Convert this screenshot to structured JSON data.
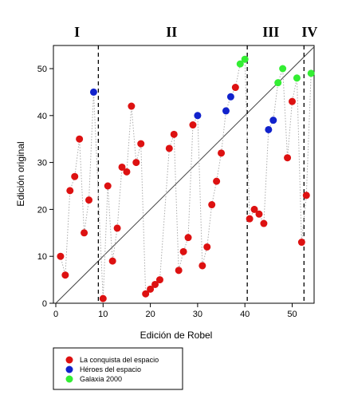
{
  "chart_data": {
    "type": "scatter",
    "xlabel": "Edición de Robel",
    "ylabel": "Edición original",
    "xlim": [
      0,
      55
    ],
    "ylim": [
      0,
      55
    ],
    "xticks": [
      0,
      10,
      20,
      30,
      40,
      50
    ],
    "yticks": [
      0,
      10,
      20,
      30,
      40,
      50
    ],
    "reference_line": "y = x",
    "period_boundaries": [
      9,
      40.5,
      52.5
    ],
    "periods": [
      {
        "label": "I",
        "x": 4.5
      },
      {
        "label": "II",
        "x": 24.5
      },
      {
        "label": "III",
        "x": 45.5
      },
      {
        "label": "IV",
        "x": 53.7
      }
    ],
    "series": [
      {
        "name": "La conquista del espacio",
        "color": "#dd1111"
      },
      {
        "name": "Héroes del espacio",
        "color": "#1122cc"
      },
      {
        "name": "Galaxia 2000",
        "color": "#33ee33"
      }
    ],
    "points": [
      {
        "x": 1,
        "y": 10,
        "s": 0
      },
      {
        "x": 2,
        "y": 6,
        "s": 0
      },
      {
        "x": 3,
        "y": 24,
        "s": 0
      },
      {
        "x": 4,
        "y": 27,
        "s": 0
      },
      {
        "x": 5,
        "y": 35,
        "s": 0
      },
      {
        "x": 6,
        "y": 15,
        "s": 0
      },
      {
        "x": 7,
        "y": 22,
        "s": 0
      },
      {
        "x": 8,
        "y": 45,
        "s": 1
      },
      {
        "x": 10,
        "y": 1,
        "s": 0
      },
      {
        "x": 11,
        "y": 25,
        "s": 0
      },
      {
        "x": 12,
        "y": 9,
        "s": 0
      },
      {
        "x": 13,
        "y": 16,
        "s": 0
      },
      {
        "x": 14,
        "y": 29,
        "s": 0
      },
      {
        "x": 15,
        "y": 28,
        "s": 0
      },
      {
        "x": 16,
        "y": 42,
        "s": 0
      },
      {
        "x": 17,
        "y": 30,
        "s": 0
      },
      {
        "x": 18,
        "y": 34,
        "s": 0
      },
      {
        "x": 19,
        "y": 2,
        "s": 0
      },
      {
        "x": 20,
        "y": 3,
        "s": 0
      },
      {
        "x": 21,
        "y": 4,
        "s": 0
      },
      {
        "x": 22,
        "y": 5,
        "s": 0
      },
      {
        "x": 24,
        "y": 33,
        "s": 0
      },
      {
        "x": 25,
        "y": 36,
        "s": 0
      },
      {
        "x": 26,
        "y": 7,
        "s": 0
      },
      {
        "x": 27,
        "y": 11,
        "s": 0
      },
      {
        "x": 28,
        "y": 14,
        "s": 0
      },
      {
        "x": 29,
        "y": 38,
        "s": 0
      },
      {
        "x": 30,
        "y": 40,
        "s": 1
      },
      {
        "x": 31,
        "y": 8,
        "s": 0
      },
      {
        "x": 32,
        "y": 12,
        "s": 0
      },
      {
        "x": 33,
        "y": 21,
        "s": 0
      },
      {
        "x": 34,
        "y": 26,
        "s": 0
      },
      {
        "x": 35,
        "y": 32,
        "s": 0
      },
      {
        "x": 36,
        "y": 41,
        "s": 1
      },
      {
        "x": 37,
        "y": 44,
        "s": 1
      },
      {
        "x": 38,
        "y": 46,
        "s": 0
      },
      {
        "x": 39,
        "y": 51,
        "s": 2
      },
      {
        "x": 40,
        "y": 52,
        "s": 2
      },
      {
        "x": 41,
        "y": 18,
        "s": 0
      },
      {
        "x": 42,
        "y": 20,
        "s": 0
      },
      {
        "x": 43,
        "y": 19,
        "s": 0
      },
      {
        "x": 44,
        "y": 17,
        "s": 0
      },
      {
        "x": 45,
        "y": 37,
        "s": 1
      },
      {
        "x": 46,
        "y": 39,
        "s": 1
      },
      {
        "x": 47,
        "y": 47,
        "s": 2
      },
      {
        "x": 48,
        "y": 50,
        "s": 2
      },
      {
        "x": 49,
        "y": 31,
        "s": 0
      },
      {
        "x": 50,
        "y": 43,
        "s": 0
      },
      {
        "x": 51,
        "y": 48,
        "s": 2
      },
      {
        "x": 52,
        "y": 13,
        "s": 0
      },
      {
        "x": 53,
        "y": 23,
        "s": 0
      },
      {
        "x": 54,
        "y": 49,
        "s": 2
      }
    ]
  }
}
